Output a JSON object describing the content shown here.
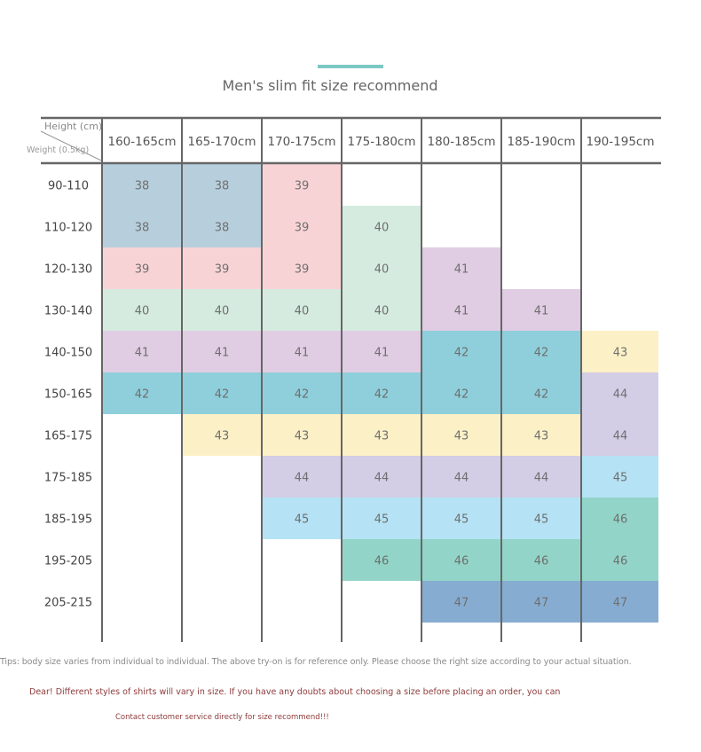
{
  "chart_data": {
    "type": "table",
    "title": "Men's slim fit size recommend",
    "corner_height_label": "Height (cm)",
    "corner_weight_label": "Weight (0.5kg)",
    "columns": [
      "160-165cm",
      "165-170cm",
      "170-175cm",
      "175-180cm",
      "180-185cm",
      "185-190cm",
      "190-195cm"
    ],
    "rows": [
      "90-110",
      "110-120",
      "120-130",
      "130-140",
      "140-150",
      "150-165",
      "165-175",
      "175-185",
      "185-195",
      "195-205",
      "205-215"
    ],
    "cells": [
      [
        38,
        38,
        39,
        null,
        null,
        null,
        null
      ],
      [
        38,
        38,
        39,
        40,
        null,
        null,
        null
      ],
      [
        39,
        39,
        39,
        40,
        41,
        null,
        null
      ],
      [
        40,
        40,
        40,
        40,
        41,
        41,
        null
      ],
      [
        41,
        41,
        41,
        41,
        42,
        42,
        43
      ],
      [
        42,
        42,
        42,
        42,
        42,
        42,
        44
      ],
      [
        null,
        43,
        43,
        43,
        43,
        43,
        44
      ],
      [
        null,
        null,
        44,
        44,
        44,
        44,
        45
      ],
      [
        null,
        null,
        45,
        45,
        45,
        45,
        46
      ],
      [
        null,
        null,
        null,
        46,
        46,
        46,
        46
      ],
      [
        null,
        null,
        null,
        null,
        47,
        47,
        47
      ]
    ],
    "size_colors": {
      "38": "#b7cfdd",
      "39": "#f8d3d6",
      "40": "#d5ebdf",
      "41": "#e0cce3",
      "42": "#8ecfdb",
      "43": "#fcf0c6",
      "44": "#d3cde6",
      "45": "#b5e2f5",
      "46": "#92d5c8",
      "47": "#87acd1"
    },
    "accent_color": "#7dc8c4",
    "grid_line_color": "#666666"
  },
  "notes": {
    "tips": "Tips: body size varies from individual to individual. The above try-on is for reference only. Please choose the right size according to your actual situation.",
    "dear": "Dear! Different styles of shirts will vary in size. If you have any doubts about choosing a size before placing an order, you can",
    "contact": "Contact customer service directly for size recommend!!!"
  }
}
